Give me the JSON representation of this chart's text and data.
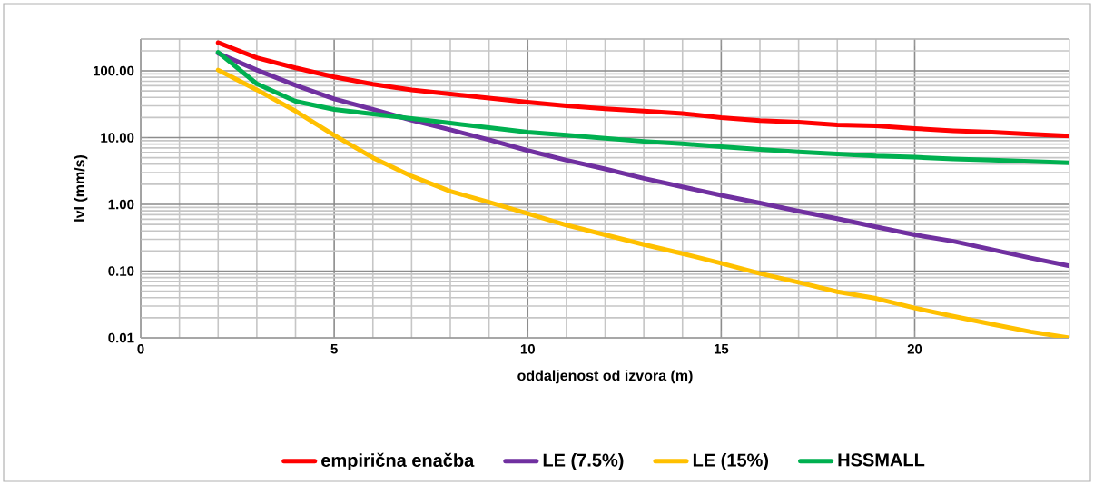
{
  "chart_data": {
    "type": "line",
    "xlabel": "oddaljenost od izvora (m)",
    "ylabel": "IvI (mm/s)",
    "log": "y",
    "grid": true,
    "legend": "bottom",
    "x": [
      2,
      3,
      4,
      5,
      6,
      7,
      8,
      9,
      10,
      11,
      12,
      13,
      14,
      15,
      16,
      17,
      18,
      19,
      20,
      21,
      22,
      23,
      24
    ],
    "xlim": [
      0,
      24
    ],
    "xticks": [
      0,
      5,
      10,
      15,
      20
    ],
    "ylim": [
      0.01,
      300
    ],
    "yticks": [
      {
        "value": 0.01,
        "label": "0.01"
      },
      {
        "value": 0.1,
        "label": "0.10"
      },
      {
        "value": 1,
        "label": "1.00"
      },
      {
        "value": 10,
        "label": "10.00"
      },
      {
        "value": 100,
        "label": "100.00"
      }
    ],
    "series": [
      {
        "name": "empirična enačba",
        "color": "#ff0000",
        "values": [
          265,
          157,
          111,
          81,
          63,
          52,
          45,
          39,
          34,
          30,
          27,
          25,
          23,
          20,
          18,
          17,
          15.5,
          15,
          13.7,
          12.7,
          12.1,
          11.3,
          10.6
        ]
      },
      {
        "name": "LE (7.5%)",
        "color": "#7030a0",
        "values": [
          184,
          103,
          61,
          38,
          26.5,
          18.3,
          13.1,
          9.3,
          6.4,
          4.6,
          3.4,
          2.45,
          1.83,
          1.37,
          1.05,
          0.79,
          0.61,
          0.46,
          0.35,
          0.28,
          0.21,
          0.157,
          0.12
        ]
      },
      {
        "name": "LE (15%)",
        "color": "#ffc000",
        "values": [
          103,
          52,
          25,
          10.9,
          5,
          2.65,
          1.57,
          1.08,
          0.73,
          0.49,
          0.35,
          0.25,
          0.183,
          0.131,
          0.092,
          0.068,
          0.049,
          0.039,
          0.028,
          0.021,
          0.016,
          0.0123,
          0.01
        ]
      },
      {
        "name": "HSSMALL",
        "color": "#00b050",
        "values": [
          190,
          64,
          35,
          26.5,
          22.6,
          19.3,
          16.5,
          14.1,
          12.1,
          10.9,
          9.8,
          8.8,
          8.1,
          7.3,
          6.65,
          6.1,
          5.7,
          5.3,
          5.1,
          4.8,
          4.6,
          4.4,
          4.2
        ]
      }
    ]
  }
}
